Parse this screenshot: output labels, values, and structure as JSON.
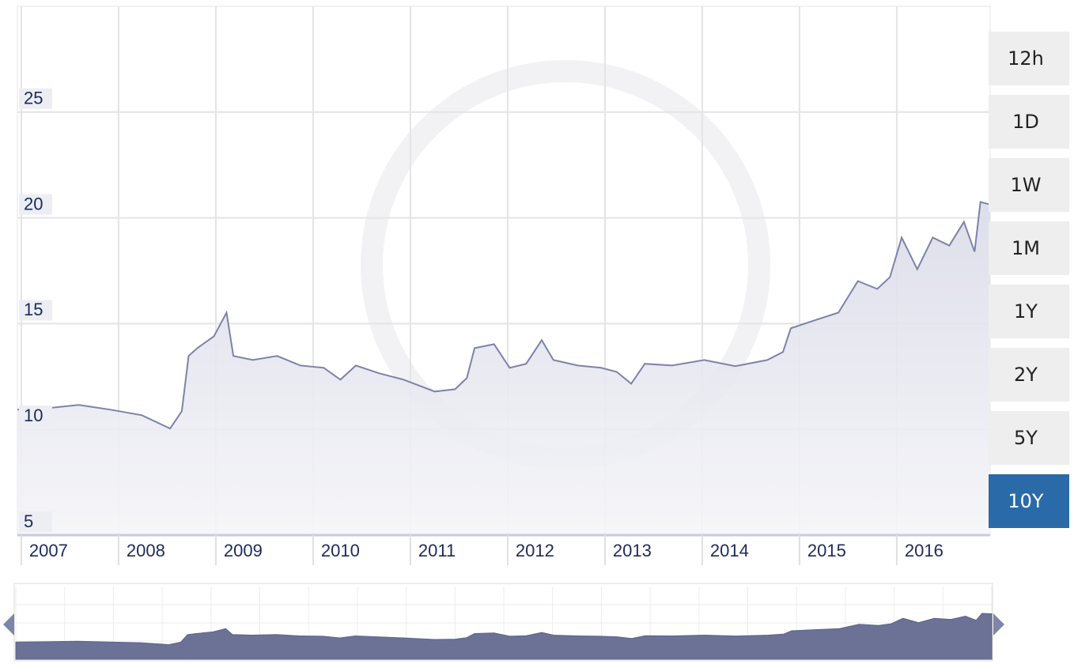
{
  "chart_data": {
    "type": "area",
    "x": [
      2006.96,
      2007.27,
      2007.59,
      2007.92,
      2008.24,
      2008.53,
      2008.65,
      2008.72,
      2008.81,
      2008.98,
      2009.11,
      2009.18,
      2009.38,
      2009.63,
      2009.87,
      2010.11,
      2010.28,
      2010.44,
      2010.68,
      2010.93,
      2011.25,
      2011.46,
      2011.58,
      2011.66,
      2011.86,
      2012.02,
      2012.19,
      2012.35,
      2012.47,
      2012.72,
      2012.96,
      2013.12,
      2013.27,
      2013.41,
      2013.69,
      2014.02,
      2014.34,
      2014.67,
      2014.83,
      2014.91,
      2015.15,
      2015.4,
      2015.6,
      2015.8,
      2015.93,
      2016.05,
      2016.21,
      2016.37,
      2016.54,
      2016.69,
      2016.8,
      2016.86,
      2016.96
    ],
    "series": [
      {
        "color": "#7c83a8",
        "values": [
          10.93,
          11.0,
          11.16,
          10.93,
          10.67,
          10.04,
          10.86,
          13.47,
          13.84,
          14.4,
          15.52,
          13.47,
          13.28,
          13.47,
          13.02,
          12.91,
          12.35,
          13.02,
          12.65,
          12.35,
          11.79,
          11.9,
          12.43,
          13.84,
          14.03,
          12.91,
          13.1,
          14.22,
          13.28,
          13.02,
          12.91,
          12.72,
          12.16,
          13.1,
          13.02,
          13.28,
          12.99,
          13.28,
          13.66,
          14.78,
          15.15,
          15.52,
          17.01,
          16.64,
          17.2,
          19.07,
          17.57,
          19.07,
          18.69,
          19.81,
          18.4,
          20.75,
          20.63
        ]
      }
    ],
    "xlim": [
      2006.96,
      2016.96
    ],
    "xticks": [
      2007,
      2008,
      2009,
      2010,
      2011,
      2012,
      2013,
      2014,
      2015,
      2016
    ],
    "ylim": [
      5,
      30
    ],
    "yticks": [
      5,
      10,
      15,
      20,
      25
    ],
    "grid": true,
    "range_buttons": [
      "12h",
      "1D",
      "1W",
      "1M",
      "1Y",
      "2Y",
      "5Y",
      "10Y"
    ],
    "selected_button": 7
  }
}
